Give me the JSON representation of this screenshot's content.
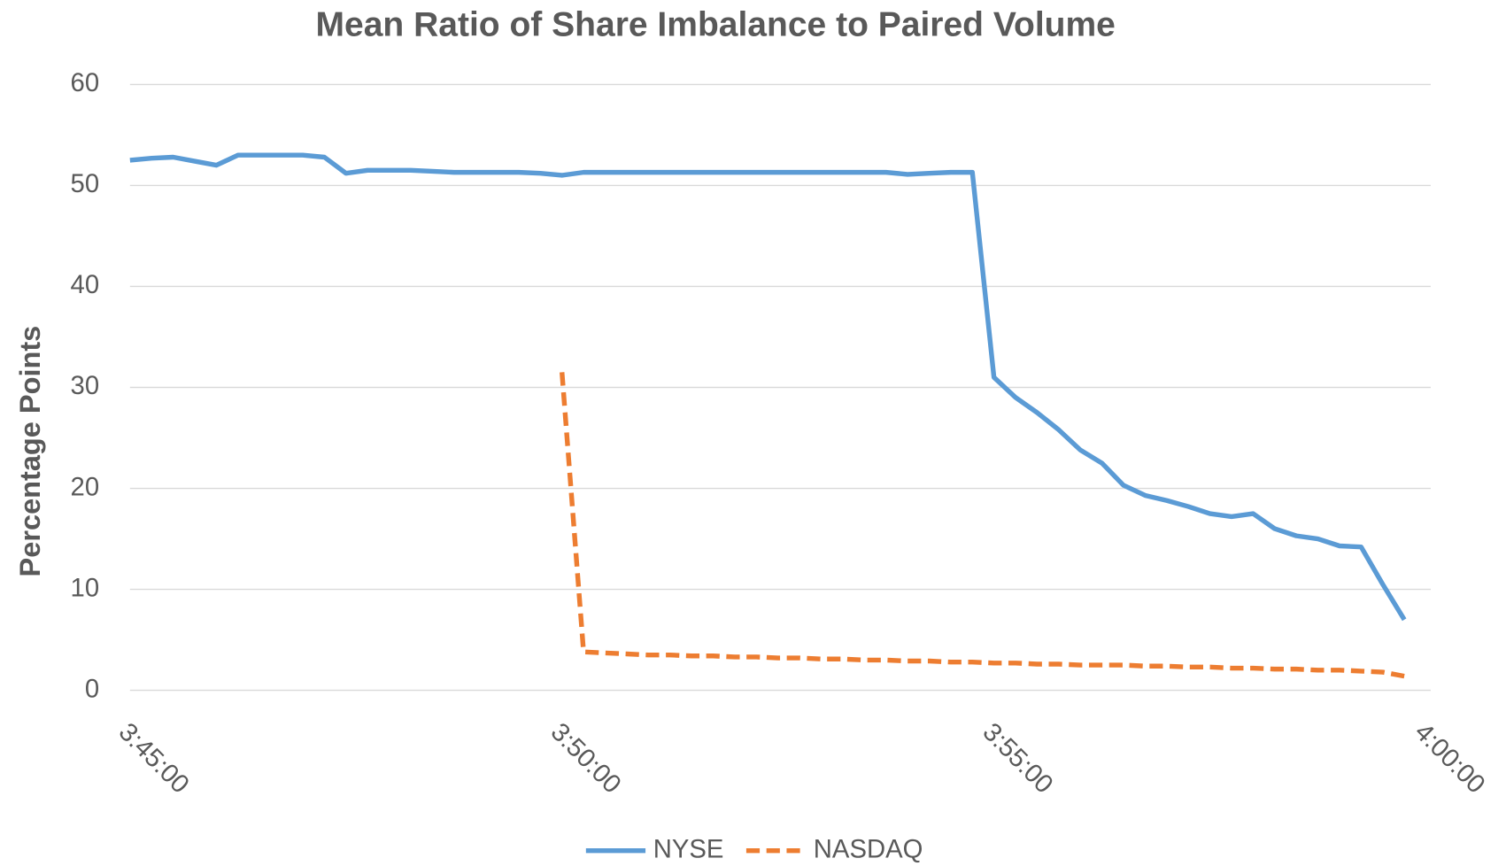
{
  "chart_data": {
    "type": "line",
    "title": "Mean Ratio of Share Imbalance to Paired Volume",
    "ylabel": "Percentage Points",
    "x": [
      "3:45:00",
      "3:45:15",
      "3:45:30",
      "3:45:45",
      "3:46:00",
      "3:46:15",
      "3:46:30",
      "3:46:45",
      "3:47:00",
      "3:47:15",
      "3:47:30",
      "3:47:45",
      "3:48:00",
      "3:48:15",
      "3:48:30",
      "3:48:45",
      "3:49:00",
      "3:49:15",
      "3:49:30",
      "3:49:45",
      "3:50:00",
      "3:50:15",
      "3:50:30",
      "3:50:45",
      "3:51:00",
      "3:51:15",
      "3:51:30",
      "3:51:45",
      "3:52:00",
      "3:52:15",
      "3:52:30",
      "3:52:45",
      "3:53:00",
      "3:53:15",
      "3:53:30",
      "3:53:45",
      "3:54:00",
      "3:54:15",
      "3:54:30",
      "3:54:45",
      "3:55:00",
      "3:55:15",
      "3:55:30",
      "3:55:45",
      "3:56:00",
      "3:56:15",
      "3:56:30",
      "3:56:45",
      "3:57:00",
      "3:57:15",
      "3:57:30",
      "3:57:45",
      "3:58:00",
      "3:58:15",
      "3:58:30",
      "3:58:45",
      "3:59:00",
      "3:59:15",
      "3:59:30",
      "3:59:45"
    ],
    "series": [
      {
        "name": "NYSE",
        "color": "#5b9bd5",
        "dashed": false,
        "values": [
          52.5,
          52.7,
          52.8,
          52.4,
          52.0,
          53.0,
          53.0,
          53.0,
          53.0,
          52.8,
          51.2,
          51.5,
          51.5,
          51.5,
          51.4,
          51.3,
          51.3,
          51.3,
          51.3,
          51.2,
          51.0,
          51.3,
          51.3,
          51.3,
          51.3,
          51.3,
          51.3,
          51.3,
          51.3,
          51.3,
          51.3,
          51.3,
          51.3,
          51.3,
          51.3,
          51.3,
          51.1,
          51.2,
          51.3,
          51.3,
          31.0,
          29.0,
          27.5,
          25.8,
          23.8,
          22.5,
          20.3,
          19.3,
          18.8,
          18.2,
          17.5,
          17.2,
          17.5,
          16.0,
          15.3,
          15.0,
          14.3,
          14.2,
          10.5,
          7.0
        ]
      },
      {
        "name": "NASDAQ",
        "color": "#ed7d31",
        "dashed": true,
        "values": [
          null,
          null,
          null,
          null,
          null,
          null,
          null,
          null,
          null,
          null,
          null,
          null,
          null,
          null,
          null,
          null,
          null,
          null,
          null,
          null,
          31.5,
          3.8,
          3.7,
          3.6,
          3.5,
          3.5,
          3.4,
          3.4,
          3.3,
          3.3,
          3.2,
          3.2,
          3.1,
          3.1,
          3.0,
          3.0,
          2.9,
          2.9,
          2.8,
          2.8,
          2.7,
          2.7,
          2.6,
          2.6,
          2.5,
          2.5,
          2.5,
          2.4,
          2.4,
          2.3,
          2.3,
          2.2,
          2.2,
          2.1,
          2.1,
          2.0,
          2.0,
          1.9,
          1.8,
          1.4
        ]
      }
    ],
    "xlim": [
      "3:45:00",
      "4:00:00"
    ],
    "xticks": [
      "3:45:00",
      "3:50:00",
      "3:55:00",
      "4:00:00"
    ],
    "ylim": [
      0,
      60
    ],
    "yticks": [
      0,
      10,
      20,
      30,
      40,
      50,
      60
    ],
    "grid": true,
    "legend": "bottom"
  }
}
